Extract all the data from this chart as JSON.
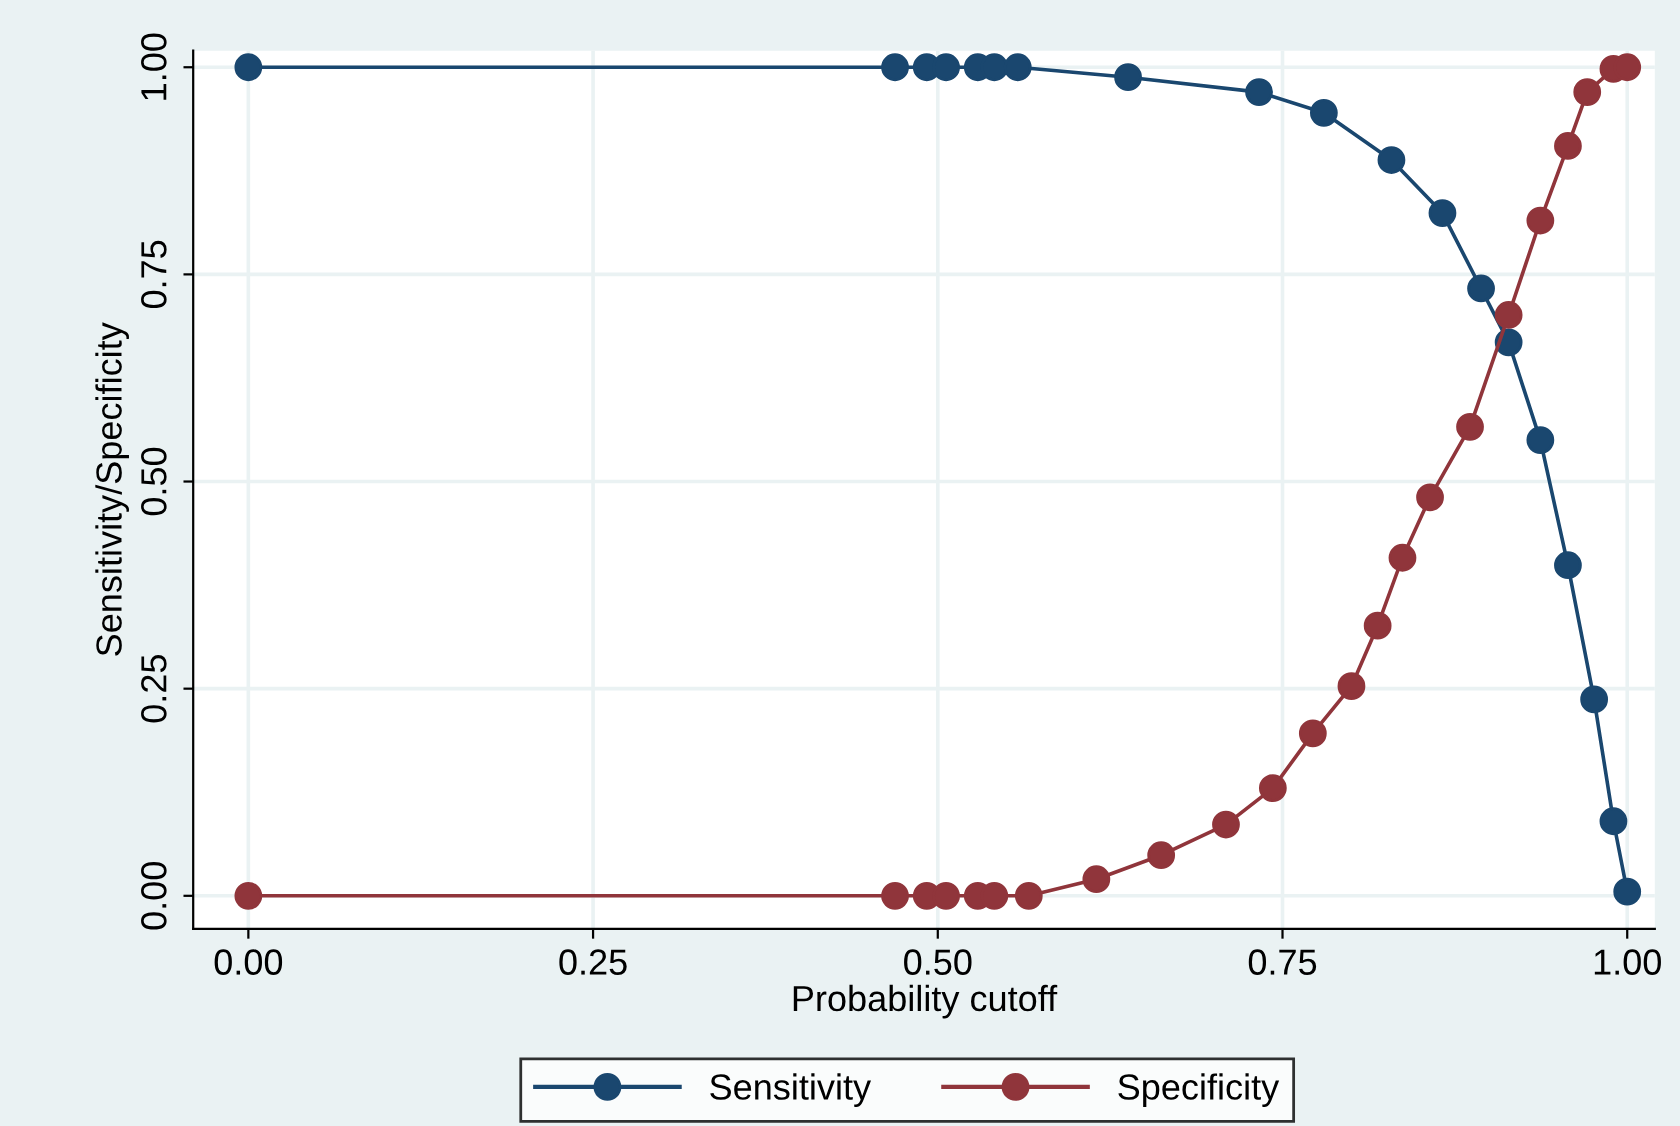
{
  "chart_data": {
    "type": "line",
    "xlabel": "Probability cutoff",
    "ylabel": "Sensitivity/Specificity",
    "xlim": [
      -0.04,
      1.02
    ],
    "ylim": [
      -0.04,
      1.02
    ],
    "xticks": [
      {
        "value": 0,
        "label": "0.00"
      },
      {
        "value": 0.25,
        "label": "0.25"
      },
      {
        "value": 0.5,
        "label": "0.50"
      },
      {
        "value": 0.75,
        "label": "0.75"
      },
      {
        "value": 1,
        "label": "1.00"
      }
    ],
    "yticks": [
      {
        "value": 0,
        "label": "0.00"
      },
      {
        "value": 0.25,
        "label": "0.25"
      },
      {
        "value": 0.5,
        "label": "0.50"
      },
      {
        "value": 0.75,
        "label": "0.75"
      },
      {
        "value": 1,
        "label": "1.00"
      }
    ],
    "grid": true,
    "legend": "bottom",
    "marker": "circle",
    "line_style": "solid",
    "series": [
      {
        "name": "Sensitivity",
        "color": "#1a476f",
        "x": [
          0,
          0.469,
          0.492,
          0.506,
          0.529,
          0.541,
          0.558,
          0.638,
          0.733,
          0.78,
          0.829,
          0.866,
          0.894,
          0.914,
          0.937,
          0.957,
          0.976,
          0.99,
          1.0
        ],
        "values": [
          1,
          1,
          1,
          1,
          1,
          1,
          1,
          0.988,
          0.97,
          0.945,
          0.888,
          0.824,
          0.733,
          0.668,
          0.55,
          0.399,
          0.237,
          0.09,
          0.005
        ]
      },
      {
        "name": "Specificity",
        "color": "#90353b",
        "x": [
          0,
          0.469,
          0.492,
          0.506,
          0.529,
          0.541,
          0.566,
          0.615,
          0.662,
          0.709,
          0.743,
          0.772,
          0.8,
          0.819,
          0.837,
          0.857,
          0.886,
          0.914,
          0.937,
          0.957,
          0.971,
          0.99,
          1.0
        ],
        "values": [
          0,
          0,
          0,
          0,
          0,
          0,
          0,
          0.02,
          0.049,
          0.086,
          0.13,
          0.196,
          0.253,
          0.326,
          0.408,
          0.481,
          0.566,
          0.701,
          0.815,
          0.905,
          0.97,
          0.998,
          1.0
        ]
      }
    ]
  }
}
